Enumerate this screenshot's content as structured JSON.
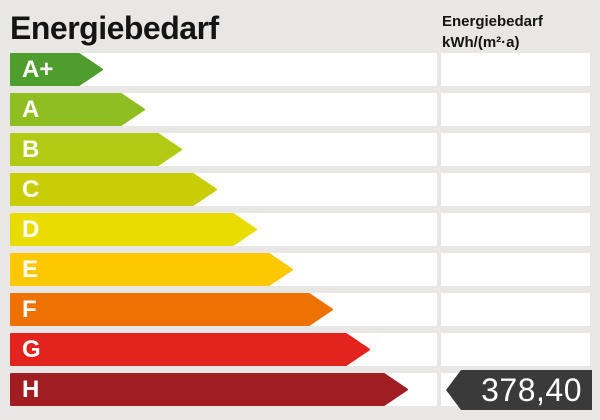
{
  "header": {
    "title": "Energiebedarf"
  },
  "axis_header": {
    "line1": "Energiebedarf",
    "line2": "kWh/(m²·a)"
  },
  "scale": {
    "classes": [
      {
        "label": "A+",
        "color": "#4f9d2d",
        "arrow_width": 93
      },
      {
        "label": "A",
        "color": "#8ebe21",
        "arrow_width": 135
      },
      {
        "label": "B",
        "color": "#b3ca14",
        "arrow_width": 172
      },
      {
        "label": "C",
        "color": "#c9cd06",
        "arrow_width": 207
      },
      {
        "label": "D",
        "color": "#e9dc00",
        "arrow_width": 247
      },
      {
        "label": "E",
        "color": "#fdc800",
        "arrow_width": 283
      },
      {
        "label": "F",
        "color": "#ee7203",
        "arrow_width": 323
      },
      {
        "label": "G",
        "color": "#e2231e",
        "arrow_width": 360
      },
      {
        "label": "H",
        "color": "#a01d22",
        "arrow_width": 398
      }
    ]
  },
  "value_badge": {
    "value": "378,40",
    "class_row": "H",
    "bg": "#3a3a3a",
    "text_color": "#ffffff"
  },
  "colors": {
    "background": "#e8e7e5",
    "row_bg": "#ffffff",
    "title_text": "#141414"
  },
  "chart_data": {
    "type": "bar",
    "title": "Energiebedarf",
    "unit_label": "Energiebedarf kWh/(m²·a)",
    "categories": [
      "A+",
      "A",
      "B",
      "C",
      "D",
      "E",
      "F",
      "G",
      "H"
    ],
    "bar_colors": [
      "#4f9d2d",
      "#8ebe21",
      "#b3ca14",
      "#c9cd06",
      "#e9dc00",
      "#fdc800",
      "#ee7203",
      "#e2231e",
      "#a01d22"
    ],
    "bar_relative_lengths": [
      93,
      135,
      172,
      207,
      247,
      283,
      323,
      360,
      398
    ],
    "value": 378.4,
    "value_display": "378,40",
    "value_class": "H",
    "legend_position": "none",
    "grid": false
  }
}
